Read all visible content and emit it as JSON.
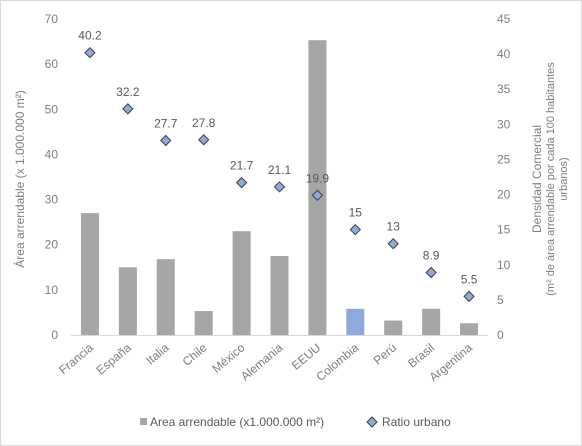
{
  "chart_data": {
    "type": "bar",
    "categories": [
      "Francia",
      "España",
      "Italia",
      "Chile",
      "México",
      "Alemania",
      "EEUU",
      "Colombia",
      "Perú",
      "Brasil",
      "Argentina"
    ],
    "series": [
      {
        "name": "Area arrendable (x1.000.000 m²)",
        "chart_type": "bar",
        "axis": "left",
        "values": [
          27,
          15,
          16.8,
          5.3,
          23,
          17.5,
          65.3,
          5.8,
          3.2,
          5.8,
          2.6
        ],
        "color": "#a6a6a6",
        "highlight": {
          "category": "Colombia",
          "color": "#8eaadb"
        }
      },
      {
        "name": "Ratio urbano",
        "chart_type": "scatter",
        "marker": "diamond",
        "axis": "right",
        "values": [
          40.2,
          32.2,
          27.7,
          27.8,
          21.7,
          21.1,
          19.9,
          15,
          13,
          8.9,
          5.5
        ],
        "data_labels": [
          "40.2",
          "32.2",
          "27.7",
          "27.8",
          "21.7",
          "21.1",
          "19.9",
          "15",
          "13",
          "8.9",
          "5.5"
        ],
        "color": "#8eaadb",
        "edge_color": "#404040"
      }
    ],
    "y_left": {
      "label": "Área arrendable (x 1.000.000 m²)",
      "ylim": [
        0,
        70
      ],
      "ticks": [
        0,
        10,
        20,
        30,
        40,
        50,
        60,
        70
      ]
    },
    "y_right": {
      "label_lines": [
        "Densidad Comercial",
        "(m² de área arrendable por cada 100 habitantes",
        "urbanos)"
      ],
      "ylim": [
        0,
        45
      ],
      "ticks": [
        0,
        5,
        10,
        15,
        20,
        25,
        30,
        35,
        40,
        45
      ]
    },
    "grid": false,
    "legend_position": "bottom"
  }
}
